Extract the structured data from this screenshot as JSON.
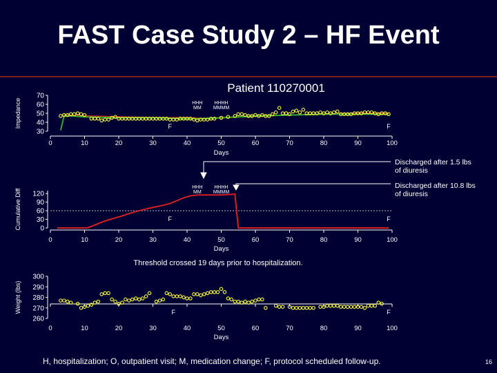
{
  "slide": {
    "title": "FAST Case Study 2 – HF Event",
    "subtitle": "Patient  110270001",
    "footnote": "H, hospitalization; O, outpatient visit; M, medication change; F, protocol scheduled follow-up.",
    "page_number": "16"
  },
  "colors": {
    "background": "#000033",
    "series_line": "#d42020",
    "trend_green": "#2faa2f",
    "markers": "#ffff33",
    "threshold": "#aaaaaa"
  },
  "annotations": {
    "discharged_1": [
      "Discharged after 1.5 lbs",
      "of diuresis"
    ],
    "discharged_2": [
      "Discharged after 10.8 lbs",
      "of diuresis"
    ],
    "threshold_note": "Threshold crossed 19 days prior to hospitalization."
  },
  "chart_data": [
    {
      "type": "scatter",
      "ylabel": "Impedance",
      "xlabel": "Days",
      "xlim": [
        0,
        100
      ],
      "ylim": [
        30,
        70
      ],
      "yticks": [
        30,
        40,
        50,
        60,
        70
      ],
      "xticks": [
        0,
        10,
        20,
        30,
        40,
        50,
        60,
        70,
        80,
        90,
        100
      ],
      "markers": {
        "F": [
          35,
          99
        ],
        "event_groups": [
          {
            "label_top": "HHH",
            "label_bottom": "MM",
            "day": 43
          },
          {
            "label_top": "HHHH",
            "label_bottom": "MMMM",
            "day": 50
          }
        ]
      },
      "series": [
        {
          "style": "markers-yellow",
          "x": [
            3,
            4,
            5,
            6,
            7,
            8,
            9,
            10,
            12,
            13,
            14,
            15,
            16,
            17,
            18,
            19,
            20,
            21,
            22,
            23,
            24,
            25,
            26,
            27,
            28,
            29,
            30,
            31,
            32,
            33,
            34,
            35,
            36,
            37,
            38,
            39,
            40,
            41,
            42,
            43,
            44,
            45,
            46,
            47,
            48,
            50,
            52,
            54,
            55,
            56,
            57,
            58,
            59,
            60,
            61,
            62,
            63,
            64,
            65,
            66,
            67,
            68,
            69,
            70,
            71,
            72,
            73,
            74,
            75,
            76,
            77,
            78,
            79,
            80,
            81,
            82,
            83,
            84,
            85,
            86,
            87,
            88,
            89,
            90,
            91,
            92,
            93,
            94,
            95,
            96,
            97,
            98,
            99
          ],
          "y": [
            47,
            48,
            48,
            49,
            49,
            50,
            49,
            48,
            44,
            44,
            44,
            42,
            43,
            43,
            45,
            46,
            44,
            44,
            44,
            44,
            44,
            44,
            44,
            44,
            44,
            44,
            44,
            44,
            44,
            44,
            44,
            43,
            43,
            43,
            44,
            44,
            44,
            44,
            43,
            42,
            43,
            43,
            43,
            44,
            44,
            45,
            46,
            47,
            49,
            49,
            48,
            47,
            47,
            48,
            47,
            48,
            47,
            47,
            49,
            51,
            56,
            50,
            50,
            49,
            52,
            53,
            51,
            54,
            50,
            50,
            50,
            50,
            51,
            50,
            51,
            50,
            51,
            52,
            49,
            49,
            49,
            49,
            50,
            50,
            50,
            51,
            51,
            51,
            50,
            49,
            50,
            50,
            49
          ]
        },
        {
          "style": "line-red",
          "x": [
            4,
            10,
            20,
            30,
            40,
            45,
            50,
            55,
            60,
            70,
            80,
            90,
            99
          ],
          "y": [
            48,
            47,
            46,
            45,
            45,
            44,
            45,
            46,
            47,
            48,
            49,
            50,
            50
          ]
        },
        {
          "style": "line-green",
          "x": [
            3,
            4,
            6,
            10,
            20,
            30,
            40,
            45,
            50,
            55,
            60,
            70,
            80,
            90,
            99
          ],
          "y": [
            31,
            47,
            47,
            46,
            45,
            45,
            44,
            44,
            45,
            46,
            47,
            48,
            49,
            49,
            49
          ]
        }
      ]
    },
    {
      "type": "line",
      "ylabel": "Cumulative Diff",
      "xlabel": "Days",
      "xlim": [
        0,
        100
      ],
      "ylim": [
        0,
        130
      ],
      "yticks": [
        0,
        30,
        60,
        90,
        120
      ],
      "xticks": [
        0,
        10,
        20,
        30,
        40,
        50,
        60,
        70,
        80,
        90,
        100
      ],
      "threshold": 60,
      "markers": {
        "F": [
          35,
          99
        ],
        "event_groups": [
          {
            "label_top": "HHH",
            "label_bottom": "MM",
            "day": 43
          },
          {
            "label_top": "HHHH",
            "label_bottom": "MMMM",
            "day": 50
          }
        ]
      },
      "series": [
        {
          "style": "line-red",
          "x": [
            2,
            5,
            8,
            10,
            11,
            13,
            15,
            17,
            19,
            21,
            23,
            25,
            27,
            29,
            31,
            33,
            35,
            37,
            39,
            41,
            43,
            45,
            47,
            49,
            51,
            53,
            54,
            55,
            56,
            57,
            60,
            70,
            80,
            90,
            99
          ],
          "y": [
            0,
            0,
            0,
            0,
            1,
            10,
            20,
            28,
            35,
            42,
            50,
            57,
            63,
            69,
            74,
            79,
            85,
            95,
            105,
            112,
            115,
            115,
            115,
            115,
            116,
            117,
            118,
            0,
            0,
            0,
            0,
            0,
            0,
            0,
            0
          ]
        }
      ]
    },
    {
      "type": "scatter",
      "ylabel": "Weight (lbs)",
      "xlabel": "Days",
      "xlim": [
        0,
        100
      ],
      "ylim": [
        260,
        300
      ],
      "yticks": [
        260,
        270,
        280,
        290,
        300
      ],
      "xticks": [
        0,
        10,
        20,
        30,
        40,
        50,
        60,
        70,
        80,
        90,
        100
      ],
      "markers": {
        "F": [
          36,
          99
        ]
      },
      "series": [
        {
          "style": "markers-yellow",
          "x": [
            3,
            4,
            5,
            6,
            8,
            9,
            10,
            11,
            12,
            13,
            14,
            15,
            16,
            17,
            18,
            19,
            20,
            21,
            22,
            23,
            24,
            25,
            26,
            27,
            28,
            29,
            31,
            32,
            33,
            34,
            35,
            36,
            37,
            38,
            39,
            40,
            41,
            42,
            43,
            44,
            45,
            46,
            47,
            48,
            49,
            50,
            51,
            52,
            53,
            54,
            55,
            56,
            57,
            58,
            59,
            60,
            61,
            62,
            63,
            66,
            67,
            68,
            70,
            71,
            72,
            73,
            74,
            75,
            76,
            77,
            79,
            80,
            81,
            82,
            83,
            84,
            85,
            86,
            87,
            88,
            89,
            90,
            91,
            92,
            93,
            94,
            95,
            96,
            97
          ],
          "y": [
            277,
            277,
            276,
            275,
            274,
            270,
            271,
            272,
            273,
            275,
            276,
            283,
            284,
            284,
            278,
            276,
            274,
            275,
            278,
            277,
            278,
            279,
            278,
            279,
            281,
            284,
            276,
            277,
            278,
            284,
            283,
            281,
            281,
            281,
            280,
            279,
            279,
            283,
            283,
            282,
            283,
            284,
            285,
            285,
            285,
            288,
            285,
            279,
            278,
            276,
            276,
            275,
            276,
            275,
            276,
            277,
            278,
            278,
            270,
            272,
            271,
            271,
            271,
            270,
            270,
            270,
            270,
            270,
            270,
            270,
            271,
            271,
            272,
            272,
            272,
            272,
            271,
            271,
            271,
            271,
            271,
            271,
            271,
            270,
            272,
            272,
            272,
            275,
            274
          ]
        }
      ]
    }
  ]
}
